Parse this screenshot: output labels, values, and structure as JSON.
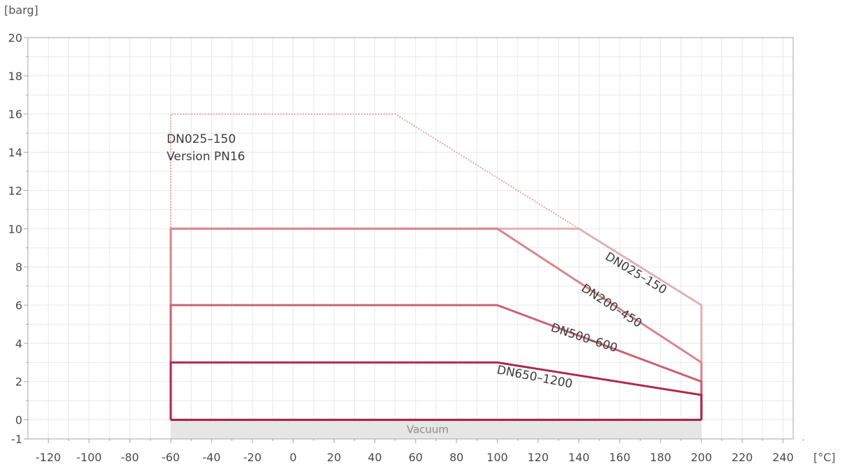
{
  "chart_data": {
    "type": "line",
    "title": "",
    "xlabel": "[°C]",
    "ylabel": "[barg]",
    "xlim": [
      -130,
      245
    ],
    "ylim": [
      -1,
      20
    ],
    "x_ticks": [
      -120,
      -100,
      -80,
      -60,
      -40,
      -20,
      0,
      20,
      40,
      60,
      80,
      100,
      120,
      140,
      160,
      180,
      200,
      220,
      240
    ],
    "y_ticks": [
      -1,
      0,
      2,
      4,
      6,
      8,
      10,
      12,
      14,
      16,
      18,
      20
    ],
    "grid": true,
    "vacuum_region": {
      "label": "Vacuum",
      "x": [
        -60,
        200
      ],
      "y": [
        -1,
        0
      ],
      "color": "#e6e6e6"
    },
    "series": [
      {
        "name": "DN025–150 Version PN16",
        "style": "dotted",
        "color": "#e3a7a7",
        "x": [
          -60,
          -60,
          50,
          200,
          200
        ],
        "y": [
          0,
          16,
          16,
          6,
          0
        ]
      },
      {
        "name": "DN025–150",
        "style": "solid",
        "color": "#e2b0b4",
        "x": [
          -60,
          -60,
          140,
          200,
          200
        ],
        "y": [
          0,
          10,
          10,
          6,
          0
        ]
      },
      {
        "name": "DN200–450",
        "style": "solid",
        "color": "#d8858b",
        "x": [
          -60,
          -60,
          100,
          200,
          200
        ],
        "y": [
          0,
          10,
          10,
          3,
          0
        ]
      },
      {
        "name": "DN500–600",
        "style": "solid",
        "color": "#c96272",
        "x": [
          -60,
          -60,
          100,
          200,
          200
        ],
        "y": [
          0,
          6,
          6,
          2,
          0
        ]
      },
      {
        "name": "DN650–1200",
        "style": "solid",
        "color": "#b0284c",
        "x": [
          -60,
          -60,
          100,
          200,
          200
        ],
        "y": [
          0,
          3,
          3,
          1.3,
          0
        ]
      }
    ],
    "annotations": [
      {
        "text_lines": [
          "DN025–150",
          "Version PN16"
        ],
        "x": -62,
        "y": 14.5
      },
      {
        "text": "DN025–150",
        "x": 167,
        "y": 7.5
      },
      {
        "text": "DN200–450",
        "x": 155,
        "y": 5.8
      },
      {
        "text": "DN500–600",
        "x": 142,
        "y": 4.1
      },
      {
        "text": "DN650–1200",
        "x": 118,
        "y": 2.05
      }
    ],
    "colors": {
      "axis": "#a5a5a5",
      "grid": "#e8e8e8",
      "baseline": "#a01e42"
    }
  }
}
